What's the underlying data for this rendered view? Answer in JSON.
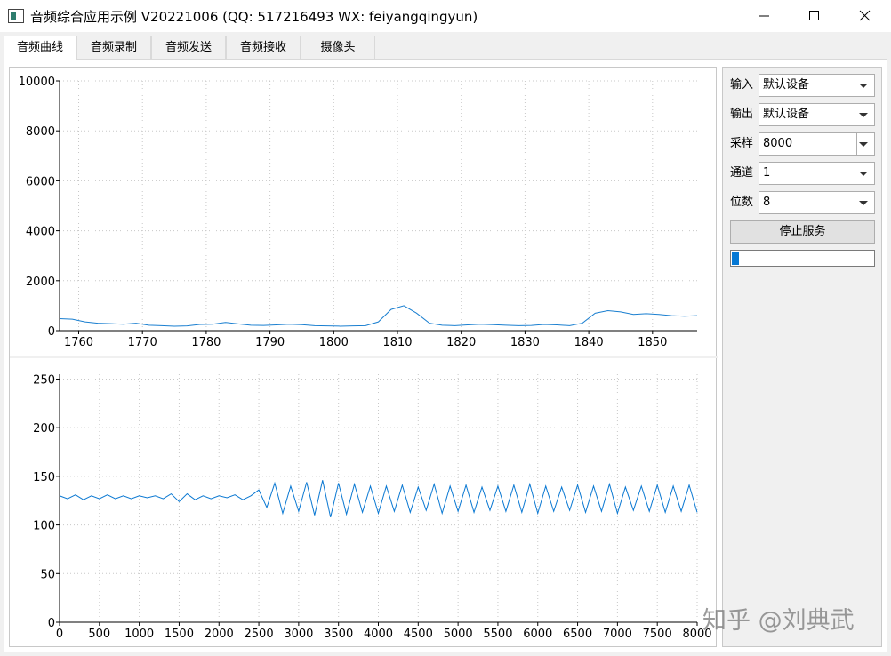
{
  "window": {
    "title": "音频综合应用示例 V20221006 (QQ: 517216493 WX: feiyangqingyun)"
  },
  "tabs": [
    "音频曲线",
    "音频录制",
    "音频发送",
    "音频接收",
    "摄像头"
  ],
  "chart_data": [
    {
      "type": "line",
      "color": "#1a7fd0",
      "grid": true,
      "xlim": [
        1757,
        1857
      ],
      "ylim": [
        0,
        10000
      ],
      "xticks": [
        1760,
        1770,
        1780,
        1790,
        1800,
        1810,
        1820,
        1830,
        1840,
        1850
      ],
      "yticks": [
        0,
        2000,
        4000,
        6000,
        8000,
        10000
      ],
      "x": [
        1757,
        1759,
        1761,
        1763,
        1765,
        1767,
        1769,
        1771,
        1773,
        1775,
        1777,
        1779,
        1781,
        1783,
        1785,
        1787,
        1789,
        1791,
        1793,
        1795,
        1797,
        1799,
        1801,
        1803,
        1805,
        1807,
        1809,
        1811,
        1813,
        1815,
        1817,
        1819,
        1821,
        1823,
        1825,
        1827,
        1829,
        1831,
        1833,
        1835,
        1837,
        1839,
        1841,
        1843,
        1845,
        1847,
        1849,
        1851,
        1853,
        1855,
        1857
      ],
      "values": [
        480,
        460,
        350,
        300,
        280,
        260,
        300,
        220,
        200,
        180,
        190,
        250,
        260,
        330,
        270,
        220,
        210,
        230,
        260,
        240,
        200,
        190,
        180,
        190,
        200,
        350,
        850,
        1000,
        700,
        300,
        220,
        200,
        230,
        260,
        240,
        220,
        200,
        210,
        250,
        230,
        200,
        300,
        700,
        800,
        750,
        650,
        680,
        650,
        600,
        580,
        600
      ]
    },
    {
      "type": "line",
      "color": "#0a78d2",
      "grid": true,
      "xlim": [
        0,
        8000
      ],
      "ylim": [
        0,
        255
      ],
      "xticks": [
        0,
        500,
        1000,
        1500,
        2000,
        2500,
        3000,
        3500,
        4000,
        4500,
        5000,
        5500,
        6000,
        6500,
        7000,
        7500,
        8000
      ],
      "yticks": [
        0,
        50,
        100,
        150,
        200,
        250
      ],
      "x": [
        0,
        100,
        200,
        300,
        400,
        500,
        600,
        700,
        800,
        900,
        1000,
        1100,
        1200,
        1300,
        1400,
        1500,
        1600,
        1700,
        1800,
        1900,
        2000,
        2100,
        2200,
        2300,
        2400,
        2500,
        2600,
        2700,
        2800,
        2900,
        3000,
        3100,
        3200,
        3300,
        3400,
        3500,
        3600,
        3700,
        3800,
        3900,
        4000,
        4100,
        4200,
        4300,
        4400,
        4500,
        4600,
        4700,
        4800,
        4900,
        5000,
        5100,
        5200,
        5300,
        5400,
        5500,
        5600,
        5700,
        5800,
        5900,
        6000,
        6100,
        6200,
        6300,
        6400,
        6500,
        6600,
        6700,
        6800,
        6900,
        7000,
        7100,
        7200,
        7300,
        7400,
        7500,
        7600,
        7700,
        7800,
        7900,
        8000
      ],
      "values": [
        130,
        127,
        131,
        126,
        130,
        127,
        131,
        127,
        130,
        127,
        130,
        128,
        130,
        127,
        132,
        124,
        132,
        126,
        130,
        127,
        130,
        128,
        131,
        126,
        130,
        136,
        118,
        143,
        112,
        140,
        114,
        144,
        110,
        146,
        108,
        143,
        111,
        142,
        113,
        140,
        112,
        140,
        114,
        141,
        113,
        139,
        115,
        142,
        112,
        140,
        114,
        141,
        113,
        139,
        115,
        140,
        114,
        141,
        113,
        142,
        112,
        140,
        114,
        139,
        115,
        141,
        113,
        140,
        114,
        142,
        112,
        139,
        115,
        140,
        114,
        141,
        113,
        140,
        114,
        141,
        113
      ]
    }
  ],
  "controls": {
    "fields": [
      {
        "label": "输入",
        "value": "默认设备"
      },
      {
        "label": "输出",
        "value": "默认设备"
      },
      {
        "label": "采样",
        "value": "8000"
      },
      {
        "label": "通道",
        "value": "1"
      },
      {
        "label": "位数",
        "value": "8"
      }
    ],
    "button": "停止服务",
    "progress": {
      "value": 5
    }
  },
  "watermark": "知乎 @刘典武"
}
